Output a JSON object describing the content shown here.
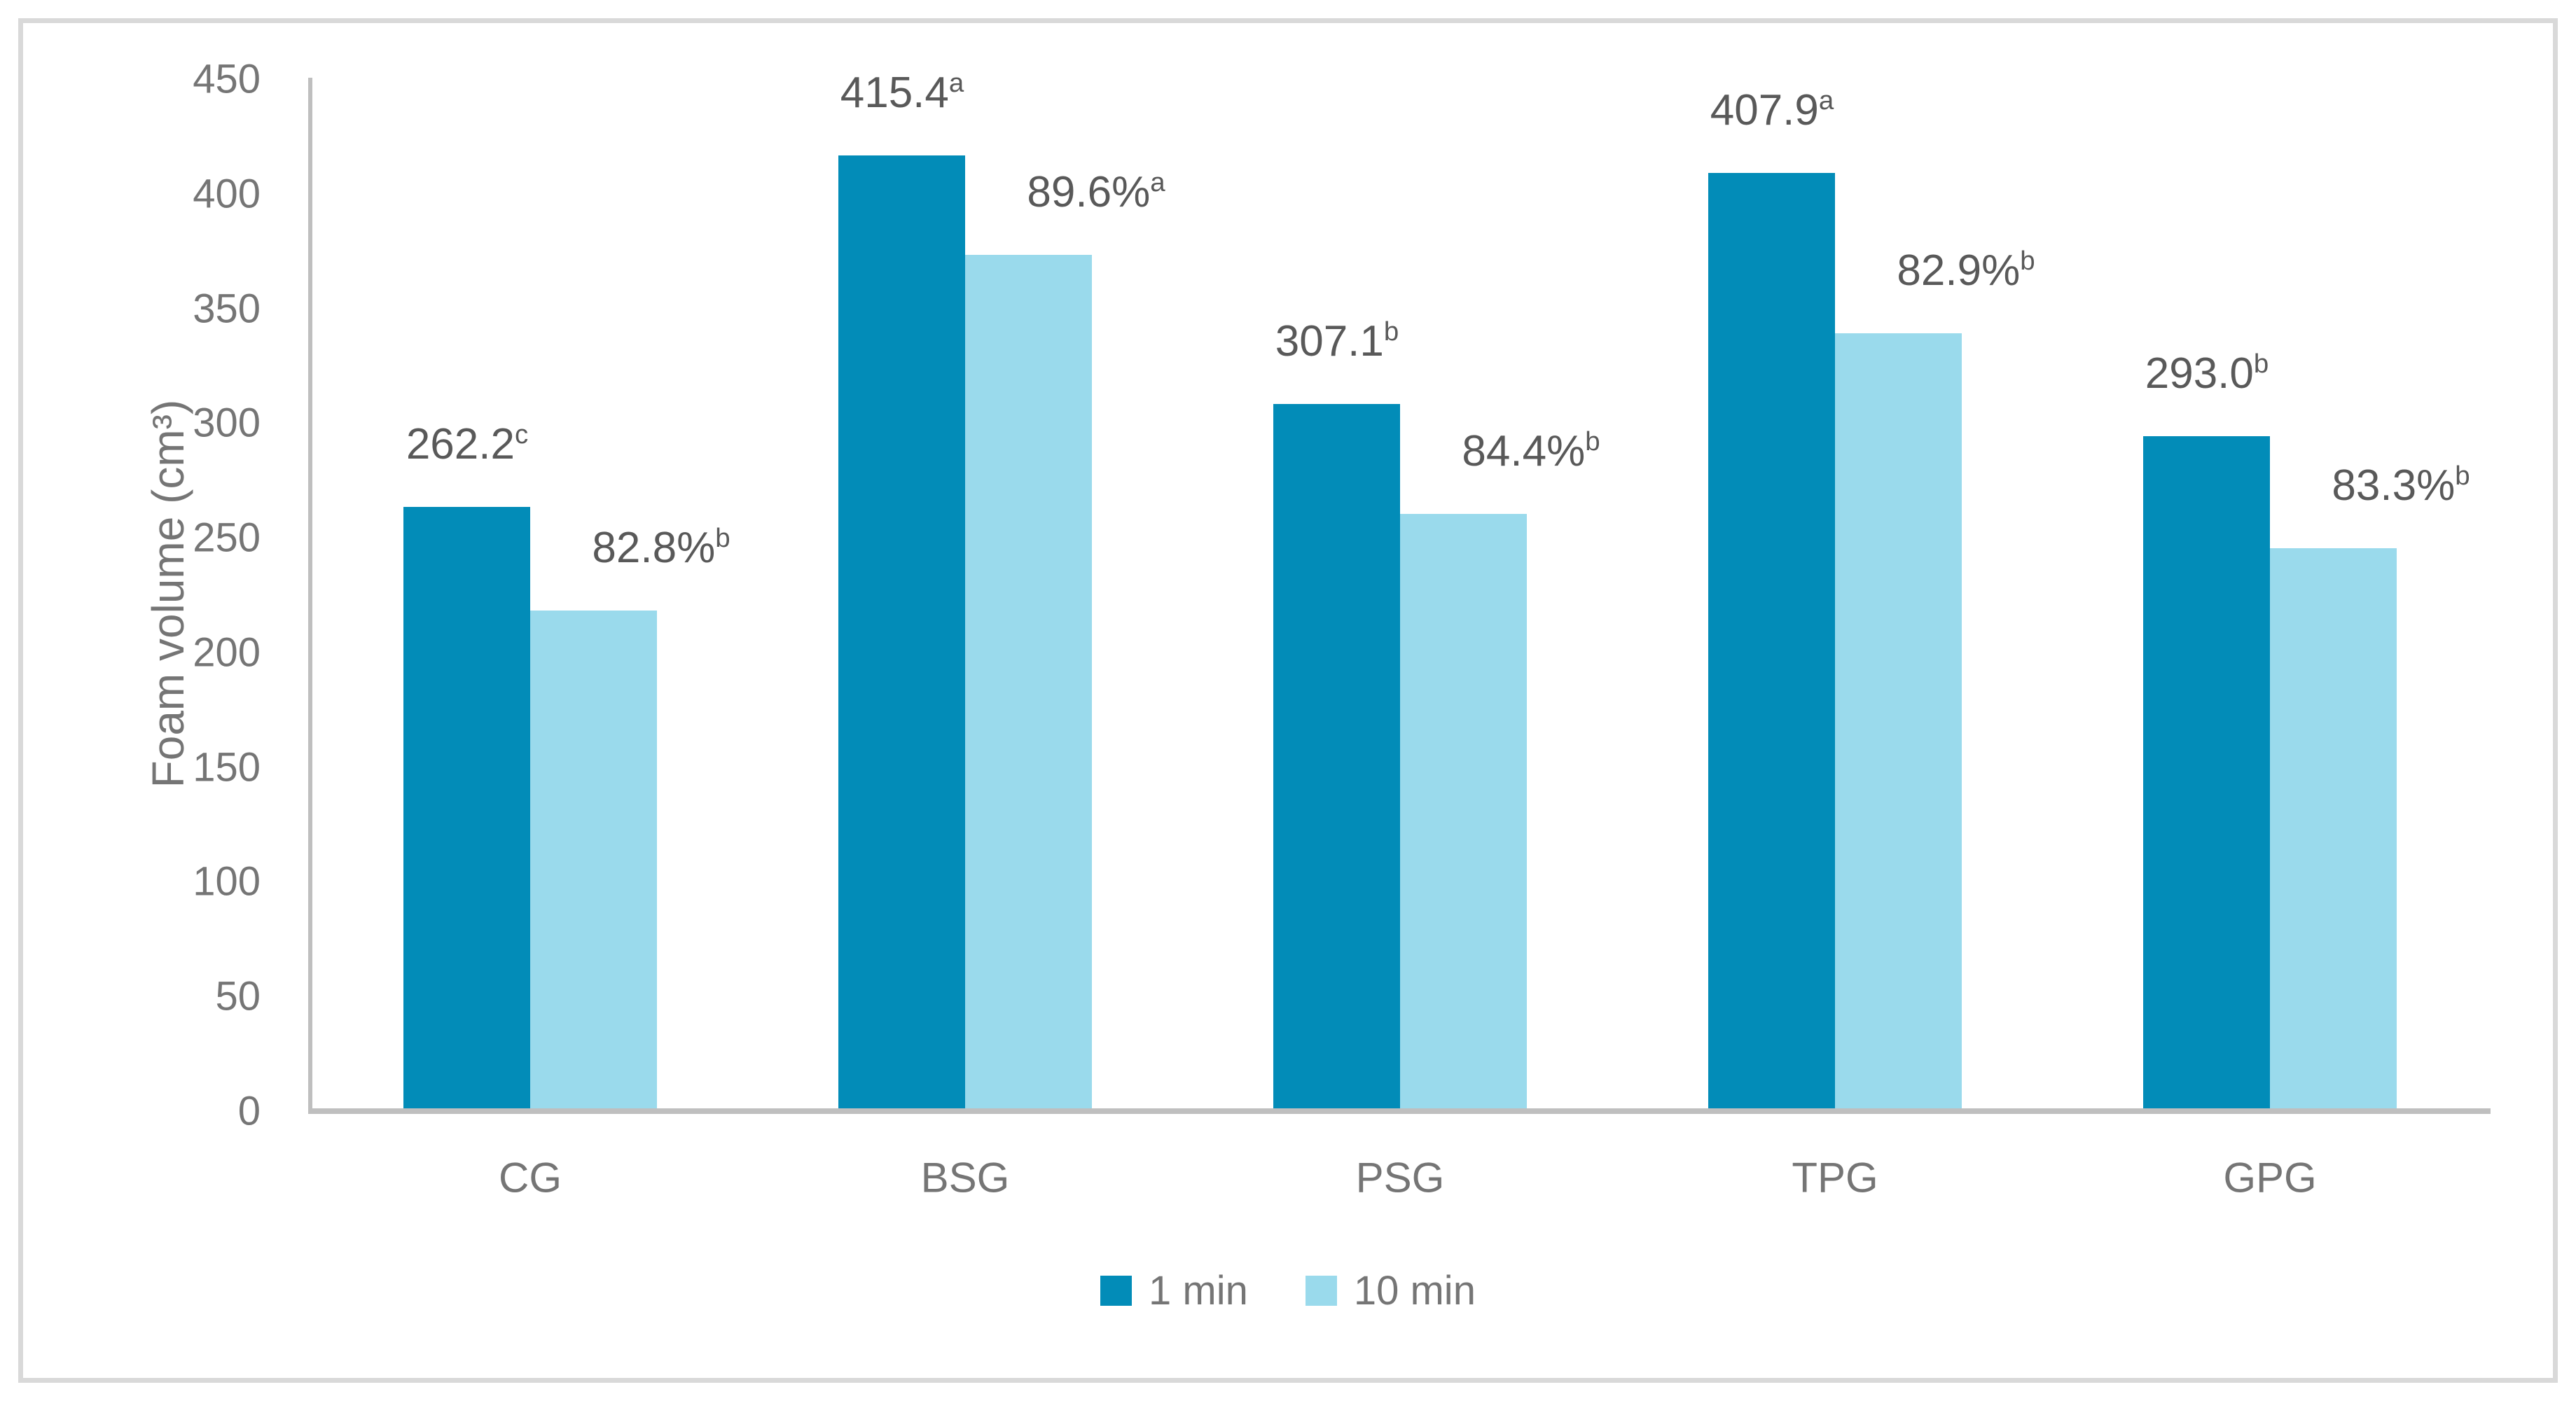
{
  "chart_data": {
    "type": "bar",
    "title": "",
    "categories": [
      "CG",
      "BSG",
      "PSG",
      "TPG",
      "GPG"
    ],
    "series": [
      {
        "name": "1 min",
        "color": "#028CB8",
        "values": [
          262.2,
          415.4,
          307.1,
          407.9,
          293.0
        ],
        "data_labels": [
          "262.2",
          "415.4",
          "307.1",
          "407.9",
          "293.0"
        ],
        "label_superscripts": [
          "c",
          "a",
          "b",
          "a",
          "b"
        ]
      },
      {
        "name": "10 min",
        "color": "#9ADAEC",
        "values": [
          217.1,
          372.2,
          259.2,
          338.1,
          244.1
        ],
        "data_labels": [
          "82.8%",
          "89.6%",
          "84.4%",
          "82.9%",
          "83.3%"
        ],
        "label_superscripts": [
          "b",
          "a",
          "b",
          "b",
          "b"
        ]
      }
    ],
    "ylabel": "Foam volume (cm³)",
    "ylim": [
      0,
      450
    ],
    "yticks": [
      0,
      50,
      100,
      150,
      200,
      250,
      300,
      350,
      400,
      450
    ],
    "grid": false,
    "legend_position": "bottom",
    "axis_line_color": "#BFBFBF",
    "tick_label_color": "#757575",
    "data_label_color": "#595959",
    "border_color": "#D9D9D9"
  }
}
